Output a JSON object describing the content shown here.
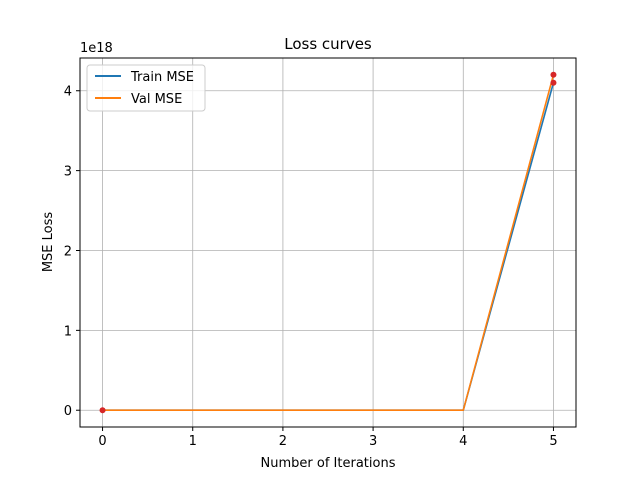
{
  "chart_data": {
    "type": "line",
    "title": "Loss curves",
    "xlabel": "Number of Iterations",
    "ylabel": "MSE Loss",
    "y_offset_label": "1e18",
    "xlim": [
      -0.25,
      5.25
    ],
    "ylim": [
      -0.21,
      4.41
    ],
    "xticks": [
      0,
      1,
      2,
      3,
      4,
      5
    ],
    "yticks": [
      0,
      1,
      2,
      3,
      4
    ],
    "grid": true,
    "legend_position": "top-left",
    "series": [
      {
        "name": "Train MSE",
        "color": "#1f77b4",
        "x": [
          0,
          1,
          2,
          3,
          4,
          5
        ],
        "y": [
          0,
          0,
          0,
          0,
          0,
          4.1
        ]
      },
      {
        "name": "Val MSE",
        "color": "#ff7f0e",
        "x": [
          0,
          1,
          2,
          3,
          4,
          5
        ],
        "y": [
          0,
          0,
          0,
          0,
          0,
          4.2
        ]
      }
    ],
    "markers": {
      "color": "#d62728",
      "points": [
        {
          "x": 0,
          "y": 0
        },
        {
          "x": 5,
          "y": 4.1
        },
        {
          "x": 5,
          "y": 4.2
        }
      ]
    }
  }
}
